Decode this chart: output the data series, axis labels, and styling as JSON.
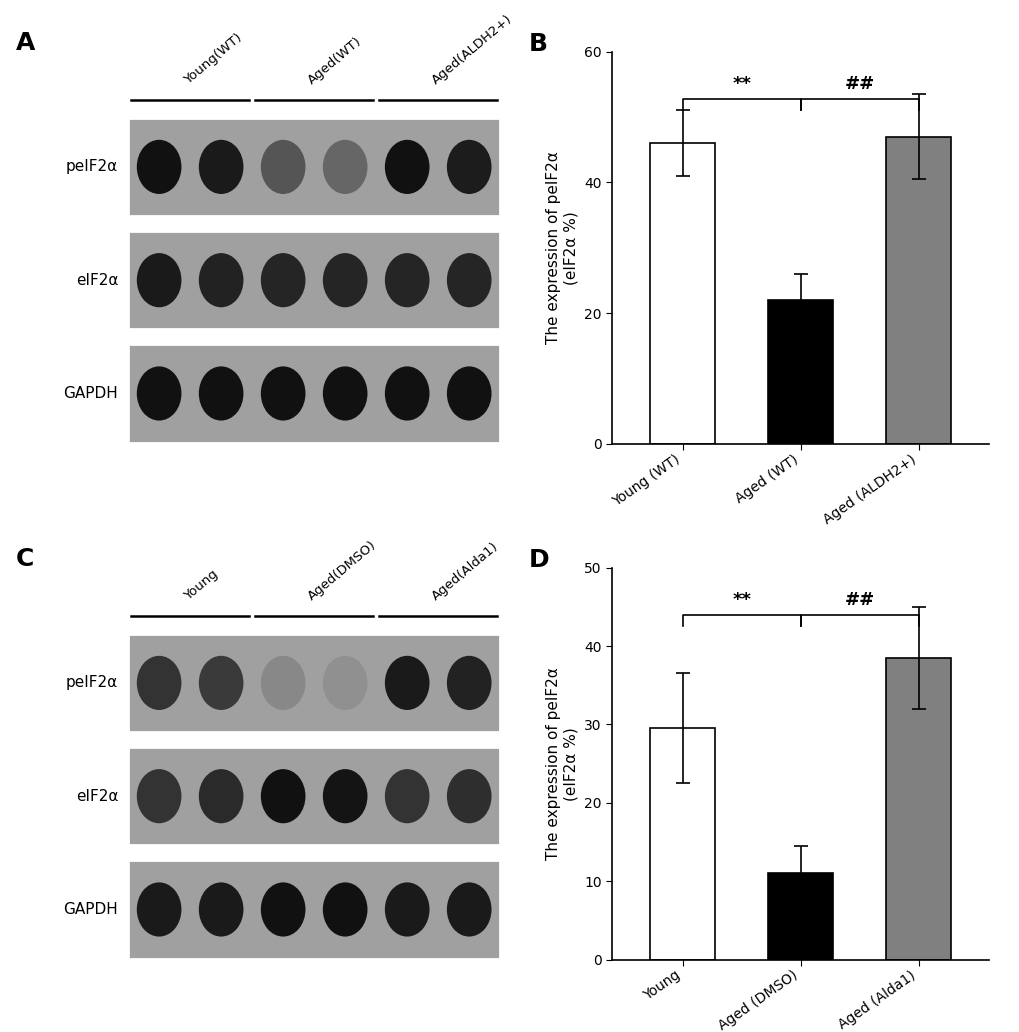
{
  "panel_B": {
    "categories": [
      "Young (WT)",
      "Aged (WT)",
      "Aged (ALDH2+)"
    ],
    "values": [
      46.0,
      22.0,
      47.0
    ],
    "errors": [
      5.0,
      4.0,
      6.5
    ],
    "colors": [
      "white",
      "black",
      "#808080"
    ],
    "ylabel": "The expression of peIF2α\n(eIF2α %)",
    "ylim": [
      0,
      60
    ],
    "yticks": [
      0,
      20,
      40,
      60
    ],
    "sig1": "**",
    "sig2": "##"
  },
  "panel_D": {
    "categories": [
      "Young",
      "Aged (DMSO)",
      "Aged (Alda1)"
    ],
    "values": [
      29.5,
      11.0,
      38.5
    ],
    "errors": [
      7.0,
      3.5,
      6.5
    ],
    "colors": [
      "white",
      "black",
      "#808080"
    ],
    "ylabel": "The expression of peIF2α\n(eIF2α %)",
    "ylim": [
      0,
      50
    ],
    "yticks": [
      0,
      10,
      20,
      30,
      40,
      50
    ],
    "sig1": "**",
    "sig2": "##"
  },
  "wb_panel_A": {
    "labels": [
      "peIF2α",
      "eIF2α",
      "GAPDH"
    ],
    "group_labels": [
      "Young(WT)",
      "Aged(WT)",
      "Aged(ALDH2+)"
    ],
    "n_lanes_per_group": 2,
    "n_groups": 3,
    "bg_color": "#a0a0a0",
    "band_colors_per_row": [
      [
        "#111111",
        "#1a1a1a",
        "#555555",
        "#666666",
        "#111111",
        "#1c1c1c"
      ],
      [
        "#1a1a1a",
        "#222222",
        "#252525",
        "#252525",
        "#252525",
        "#252525"
      ],
      [
        "#111111",
        "#111111",
        "#111111",
        "#111111",
        "#111111",
        "#111111"
      ]
    ]
  },
  "wb_panel_C": {
    "labels": [
      "peIF2α",
      "eIF2α",
      "GAPDH"
    ],
    "group_labels": [
      "Young",
      "Aged(DMSO)",
      "Aged(Alda1)"
    ],
    "n_lanes_per_group": 2,
    "n_groups": 3,
    "bg_color": "#a0a0a0",
    "band_colors_per_row": [
      [
        "#333333",
        "#3a3a3a",
        "#888888",
        "#909090",
        "#1a1a1a",
        "#222222"
      ],
      [
        "#333333",
        "#2a2a2a",
        "#111111",
        "#141414",
        "#333333",
        "#2e2e2e"
      ],
      [
        "#1a1a1a",
        "#1a1a1a",
        "#111111",
        "#111111",
        "#1a1a1a",
        "#1a1a1a"
      ]
    ]
  },
  "bg_color": "#ffffff",
  "panel_label_fontsize": 18,
  "axis_label_fontsize": 11,
  "tick_fontsize": 10,
  "edge_color": "black",
  "bar_width": 0.55
}
